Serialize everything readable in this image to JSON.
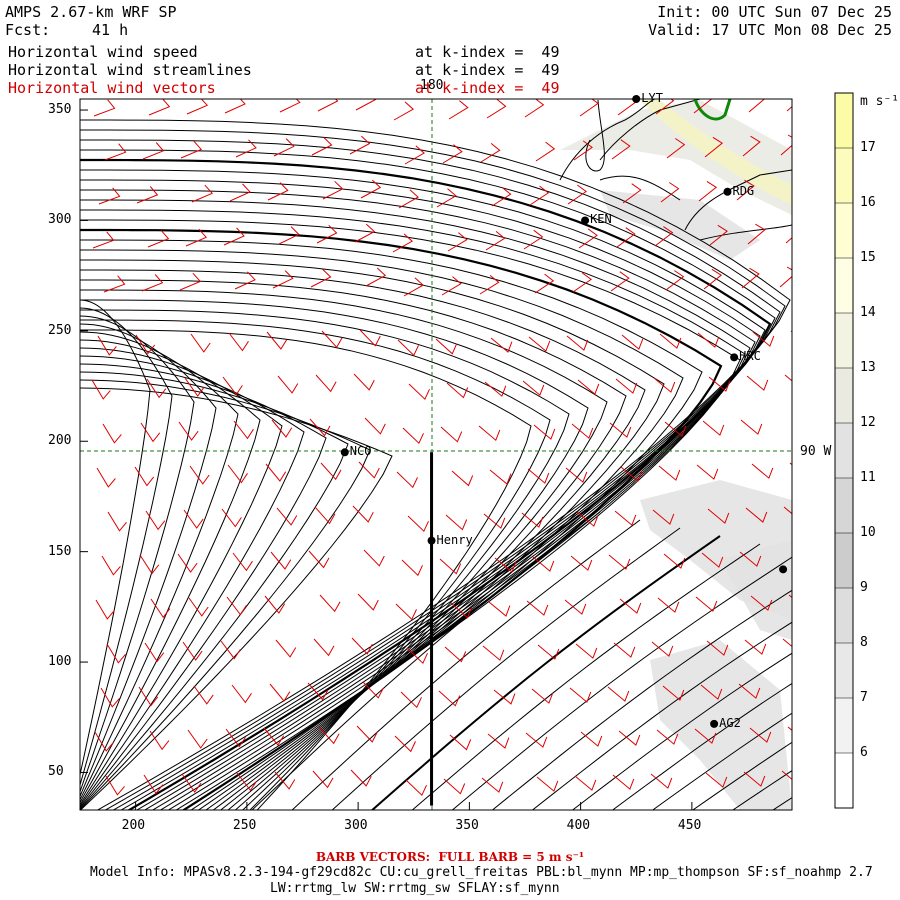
{
  "header": {
    "model": "AMPS 2.67-km WRF SP",
    "fcst_label": "Fcst:",
    "fcst_value": "41 h",
    "init": "Init: 00 UTC Sun 07 Dec 25",
    "valid": "Valid: 17 UTC Mon 08 Dec 25"
  },
  "fields": [
    {
      "name": "Horizontal wind speed",
      "level": "at k-index =  49",
      "color": "#000000"
    },
    {
      "name": "Horizontal wind streamlines",
      "level": "at k-index =  49",
      "color": "#000000"
    },
    {
      "name": "Horizontal wind vectors",
      "level": "at k-index =  49",
      "color": "#d00000"
    }
  ],
  "axes": {
    "x_ticks": [
      "200",
      "250",
      "300",
      "350",
      "400",
      "450"
    ],
    "y_ticks": [
      "350",
      "300",
      "250",
      "200",
      "150",
      "100",
      "50"
    ],
    "xlim": [
      175,
      495
    ],
    "ylim": [
      33,
      355
    ]
  },
  "gridlines": {
    "meridian_label": "180",
    "parallel_label": "90 W"
  },
  "stations": [
    {
      "name": "LYT",
      "x": 425,
      "y": 355
    },
    {
      "name": "RDG",
      "x": 466,
      "y": 313
    },
    {
      "name": "KEN",
      "x": 402,
      "y": 300
    },
    {
      "name": "HRC",
      "x": 469,
      "y": 238
    },
    {
      "name": "NCO",
      "x": 294,
      "y": 195
    },
    {
      "name": "Henry",
      "x": 333,
      "y": 155
    },
    {
      "name": "AG2",
      "x": 460,
      "y": 72
    },
    {
      "name": "",
      "x": 491,
      "y": 142
    }
  ],
  "cross_section_line": {
    "x": 333,
    "y_from": 35,
    "y_to": 195
  },
  "colorbar": {
    "unit": "m s⁻¹",
    "labels": [
      "17",
      "16",
      "15",
      "14",
      "13",
      "12",
      "11",
      "10",
      "9",
      "8",
      "7",
      "6"
    ],
    "colors": [
      "#fdfca6",
      "#fdfcbc",
      "#fefed2",
      "#fefee4",
      "#f3f3e2",
      "#eaeae0",
      "#e2e2e2",
      "#d6d6d6",
      "#cccccc",
      "#dddddd",
      "#e8e8e8",
      "#f2f2f2",
      "#ffffff"
    ]
  },
  "footer": {
    "barb": "BARB VECTORS:  FULL BARB = 5 m s⁻¹",
    "model_info": "Model Info: MPASv8.2.3-194-gf29cd82c CU:cu_grell_freitas PBL:bl_mynn MP:mp_thompson SF:sf_noahmp 2.7",
    "physics": "LW:rrtmg_lw SW:rrtmg_sw SFLAY:sf_mynn"
  }
}
